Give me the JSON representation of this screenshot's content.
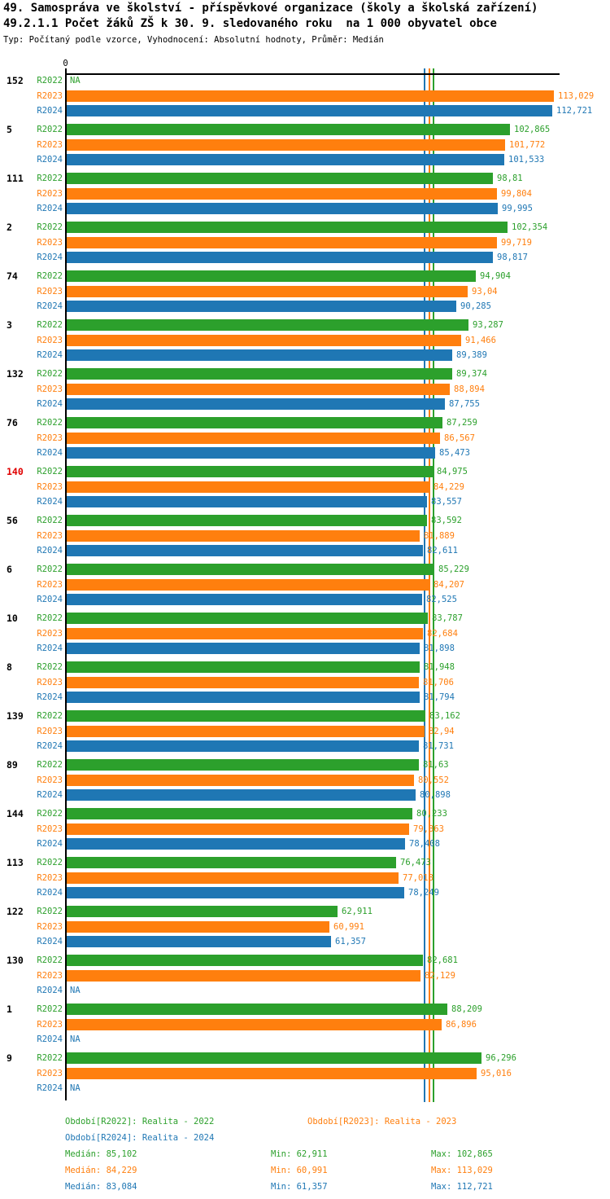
{
  "title": {
    "line1": "49. Samospráva ve školství - příspěvkové organizace (školy a školská zařízení)",
    "line2": "49.2.1.1 Počet žáků ZŠ k 30. 9. sledovaného roku  na 1 000 obyvatel obce",
    "line3": "Typ: Počítaný podle vzorce, Vyhodnocení: Absolutní hodnoty, Průměr: Medián"
  },
  "axis": {
    "origin_label": "0"
  },
  "na_label": "NA",
  "colors": {
    "r2022": "#2ca02c",
    "r2023": "#ff7f0e",
    "r2024": "#1f77b4",
    "axis": "#000000",
    "highlight": "#e00000"
  },
  "chart_data": {
    "type": "bar",
    "orientation": "horizontal",
    "grid": false,
    "xlim": [
      0,
      114.5
    ],
    "categories": [
      "152",
      "5",
      "111",
      "2",
      "74",
      "3",
      "132",
      "76",
      "140",
      "56",
      "6",
      "10",
      "8",
      "139",
      "89",
      "144",
      "113",
      "122",
      "130",
      "1",
      "9"
    ],
    "highlighted_categories": [
      "140"
    ],
    "series": [
      {
        "name": "R2022",
        "color": "#2ca02c",
        "legend": "Období[R2022]: Realita - 2022",
        "values": [
          null,
          102.865,
          98.81,
          102.354,
          94.904,
          93.287,
          89.374,
          87.259,
          84.975,
          83.592,
          85.229,
          83.787,
          81.948,
          83.162,
          81.63,
          80.233,
          76.473,
          62.911,
          82.681,
          88.209,
          96.296
        ],
        "value_labels": [
          "NA",
          "102,865",
          "98,81",
          "102,354",
          "94,904",
          "93,287",
          "89,374",
          "87,259",
          "84,975",
          "83,592",
          "85,229",
          "83,787",
          "81,948",
          "83,162",
          "81,63",
          "80,233",
          "76,473",
          "62,911",
          "82,681",
          "88,209",
          "96,296"
        ],
        "median": 85.102,
        "stats": {
          "median_label": "Medián: 85,102",
          "min_label": "Min: 62,911",
          "max_label": "Max: 102,865"
        }
      },
      {
        "name": "R2023",
        "color": "#ff7f0e",
        "legend": "Období[R2023]: Realita - 2023",
        "values": [
          113.029,
          101.772,
          99.804,
          99.719,
          93.04,
          91.466,
          88.894,
          86.567,
          84.229,
          81.889,
          84.207,
          82.684,
          81.706,
          82.94,
          80.552,
          79.363,
          77.018,
          60.991,
          82.129,
          86.896,
          95.016
        ],
        "value_labels": [
          "113,029",
          "101,772",
          "99,804",
          "99,719",
          "93,04",
          "91,466",
          "88,894",
          "86,567",
          "84,229",
          "81,889",
          "84,207",
          "82,684",
          "81,706",
          "82,94",
          "80,552",
          "79,363",
          "77,018",
          "60,991",
          "82,129",
          "86,896",
          "95,016"
        ],
        "median": 84.229,
        "stats": {
          "median_label": "Medián: 84,229",
          "min_label": "Min: 60,991",
          "max_label": "Max: 113,029"
        }
      },
      {
        "name": "R2024",
        "color": "#1f77b4",
        "legend": "Období[R2024]: Realita - 2024",
        "values": [
          112.721,
          101.533,
          99.995,
          98.817,
          90.285,
          89.389,
          87.755,
          85.473,
          83.557,
          82.611,
          82.525,
          81.898,
          81.794,
          81.731,
          80.898,
          78.408,
          78.249,
          61.357,
          null,
          null,
          null
        ],
        "value_labels": [
          "112,721",
          "101,533",
          "99,995",
          "98,817",
          "90,285",
          "89,389",
          "87,755",
          "85,473",
          "83,557",
          "82,611",
          "82,525",
          "81,898",
          "81,794",
          "81,731",
          "80,898",
          "78,408",
          "78,249",
          "61,357",
          "NA",
          "NA",
          "NA"
        ],
        "median": 83.084,
        "stats": {
          "median_label": "Medián: 83,084",
          "min_label": "Min: 61,357",
          "max_label": "Max: 112,721"
        }
      }
    ]
  }
}
